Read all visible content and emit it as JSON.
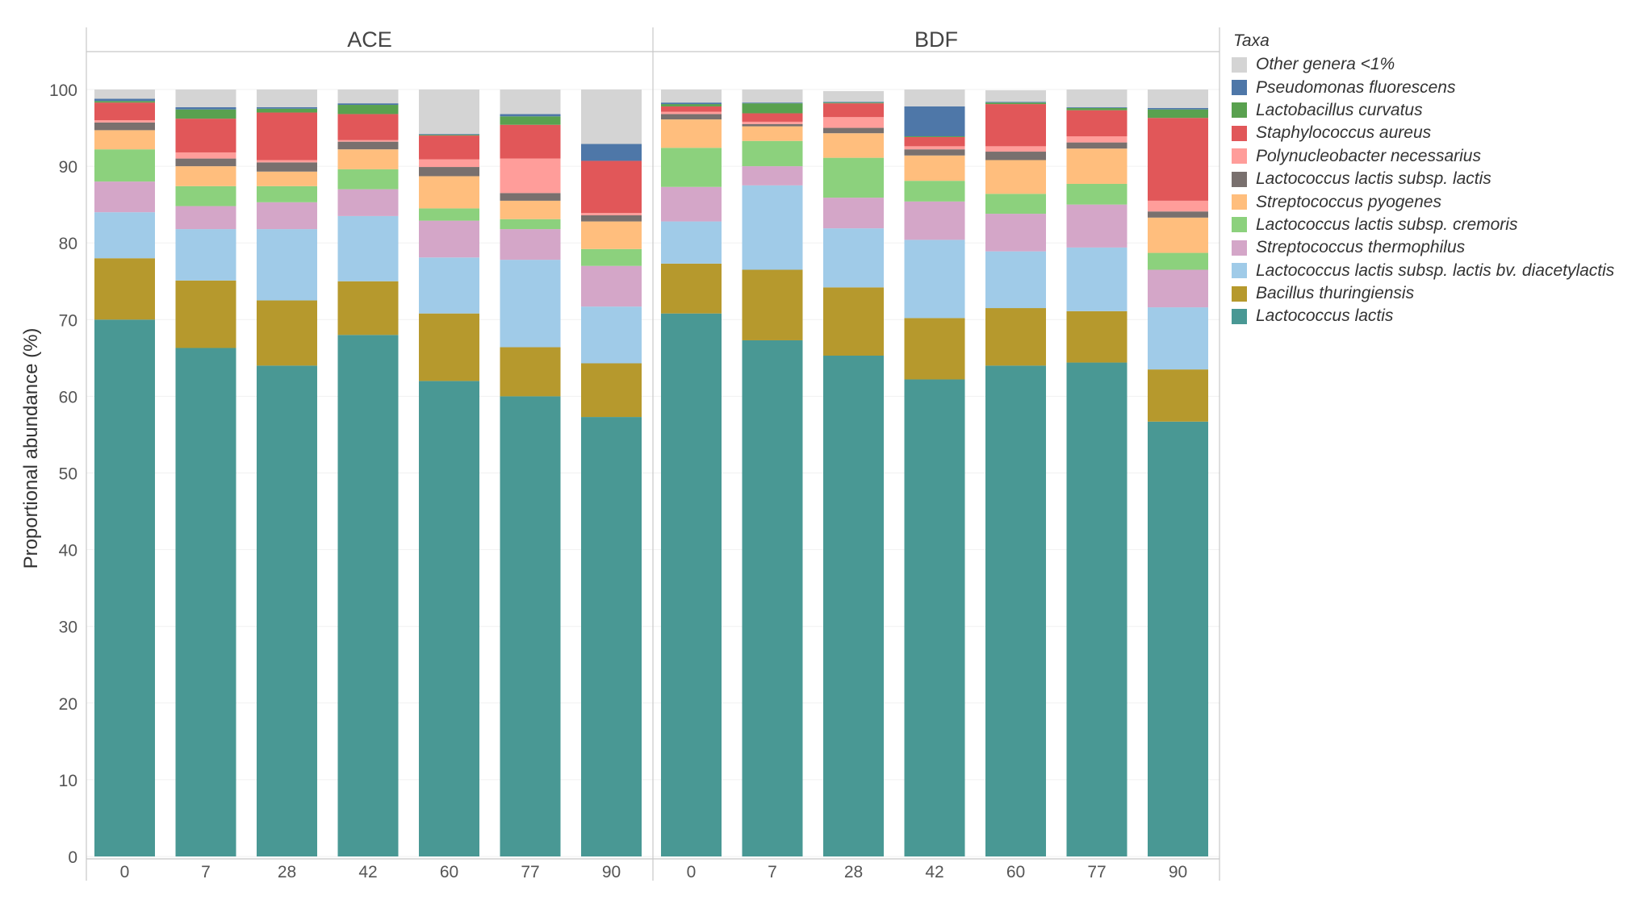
{
  "chart_data": {
    "type": "bar",
    "stacked": true,
    "ylabel": "Proportional abundance (%)",
    "ylim": [
      0,
      100
    ],
    "yticks": [
      0,
      10,
      20,
      30,
      40,
      50,
      60,
      70,
      80,
      90,
      100
    ],
    "categories": [
      "0",
      "7",
      "28",
      "42",
      "60",
      "77",
      "90"
    ],
    "panels": [
      {
        "title": "ACE",
        "series": [
          {
            "name": "Lactococcus lactis",
            "values": [
              70,
              66.3,
              64,
              68,
              62,
              60,
              57.3
            ]
          },
          {
            "name": "Bacillus thuringiensis",
            "values": [
              8,
              8.8,
              8.5,
              7,
              8.8,
              6.4,
              7
            ]
          },
          {
            "name": "Lactococcus lactis subsp. lactis bv. diacetylactis",
            "values": [
              6,
              6.7,
              9.3,
              8.5,
              7.3,
              11.4,
              7.4
            ]
          },
          {
            "name": "Streptococcus thermophilus",
            "values": [
              4,
              3,
              3.5,
              3.5,
              4.8,
              4,
              5.3
            ]
          },
          {
            "name": "Lactococcus lactis subsp. cremoris",
            "values": [
              4.2,
              2.6,
              2.1,
              2.6,
              1.6,
              1.3,
              2.2
            ]
          },
          {
            "name": "Streptococcus pyogenes",
            "values": [
              2.5,
              2.6,
              1.9,
              2.6,
              4.2,
              2.4,
              3.6
            ]
          },
          {
            "name": "Lactococcus lactis subsp. lactis",
            "values": [
              1,
              1,
              1.2,
              1,
              1.2,
              1,
              0.8
            ]
          },
          {
            "name": "Polynucleobacter necessarius",
            "values": [
              0.3,
              0.8,
              0.3,
              0.2,
              1,
              4.5,
              0.3
            ]
          },
          {
            "name": "Staphylococcus aureus",
            "values": [
              2.3,
              4.4,
              6.2,
              3.4,
              3.1,
              4.4,
              6.8
            ]
          },
          {
            "name": "Lactobacillus curvatus",
            "values": [
              0.2,
              1.2,
              0.5,
              1.2,
              0.1,
              1.1,
              0
            ]
          },
          {
            "name": "Pseudomonas fluorescens",
            "values": [
              0.3,
              0.3,
              0.2,
              0.2,
              0.1,
              0.3,
              2.2
            ]
          },
          {
            "name": "Other genera <1%",
            "values": [
              1.2,
              2.3,
              2.3,
              1.8,
              5.8,
              3.2,
              7.1
            ]
          }
        ]
      },
      {
        "title": "BDF",
        "series": [
          {
            "name": "Lactococcus lactis",
            "values": [
              70.8,
              67.3,
              65.3,
              62.2,
              64,
              64.4,
              56.7
            ]
          },
          {
            "name": "Bacillus thuringiensis",
            "values": [
              6.5,
              9.2,
              8.9,
              8,
              7.5,
              6.7,
              6.8
            ]
          },
          {
            "name": "Lactococcus lactis subsp. lactis bv. diacetylactis",
            "values": [
              5.5,
              11,
              7.7,
              10.2,
              7.4,
              8.3,
              8.1
            ]
          },
          {
            "name": "Streptococcus thermophilus",
            "values": [
              4.5,
              2.5,
              4,
              5,
              4.9,
              5.6,
              4.9
            ]
          },
          {
            "name": "Lactococcus lactis subsp. cremoris",
            "values": [
              5.1,
              3.3,
              5.2,
              2.7,
              2.6,
              2.7,
              2.2
            ]
          },
          {
            "name": "Streptococcus pyogenes",
            "values": [
              3.7,
              1.9,
              3.2,
              3.3,
              4.4,
              4.6,
              4.6
            ]
          },
          {
            "name": "Lactococcus lactis subsp. lactis",
            "values": [
              0.7,
              0.3,
              0.7,
              0.8,
              1.1,
              0.8,
              0.8
            ]
          },
          {
            "name": "Polynucleobacter necessarius",
            "values": [
              0.3,
              0.3,
              1.4,
              0.4,
              0.7,
              0.8,
              1.4
            ]
          },
          {
            "name": "Staphylococcus aureus",
            "values": [
              0.7,
              1.1,
              1.8,
              1.2,
              5.5,
              3.4,
              10.8
            ]
          },
          {
            "name": "Lactobacillus curvatus",
            "values": [
              0.3,
              1.3,
              0.1,
              0.1,
              0.2,
              0.3,
              1.1
            ]
          },
          {
            "name": "Pseudomonas fluorescens",
            "values": [
              0.2,
              0.1,
              0.1,
              3.9,
              0.1,
              0.1,
              0.2
            ]
          },
          {
            "name": "Other genera <1%",
            "values": [
              1.7,
              1.7,
              1.4,
              2.2,
              1.5,
              2.3,
              2.4
            ]
          }
        ]
      }
    ],
    "legend": {
      "title": "Taxa",
      "items": [
        {
          "name": "Other genera <1%",
          "color": "#d4d4d4"
        },
        {
          "name": "Pseudomonas fluorescens",
          "color": "#4e77a8"
        },
        {
          "name": "Lactobacillus curvatus",
          "color": "#59a14f"
        },
        {
          "name": "Staphylococcus aureus",
          "color": "#e15759"
        },
        {
          "name": "Polynucleobacter necessarius",
          "color": "#ff9d9a"
        },
        {
          "name": "Lactococcus lactis subsp. lactis",
          "color": "#79706e"
        },
        {
          "name": "Streptococcus pyogenes",
          "color": "#ffbe7d"
        },
        {
          "name": "Lactococcus lactis subsp. cremoris",
          "color": "#8cd17d"
        },
        {
          "name": "Streptococcus thermophilus",
          "color": "#d4a6c8"
        },
        {
          "name": "Lactococcus lactis subsp. lactis bv. diacetylactis",
          "color": "#a0cbe8"
        },
        {
          "name": "Bacillus thuringiensis",
          "color": "#b6992d"
        },
        {
          "name": "Lactococcus lactis",
          "color": "#499894"
        }
      ]
    }
  }
}
